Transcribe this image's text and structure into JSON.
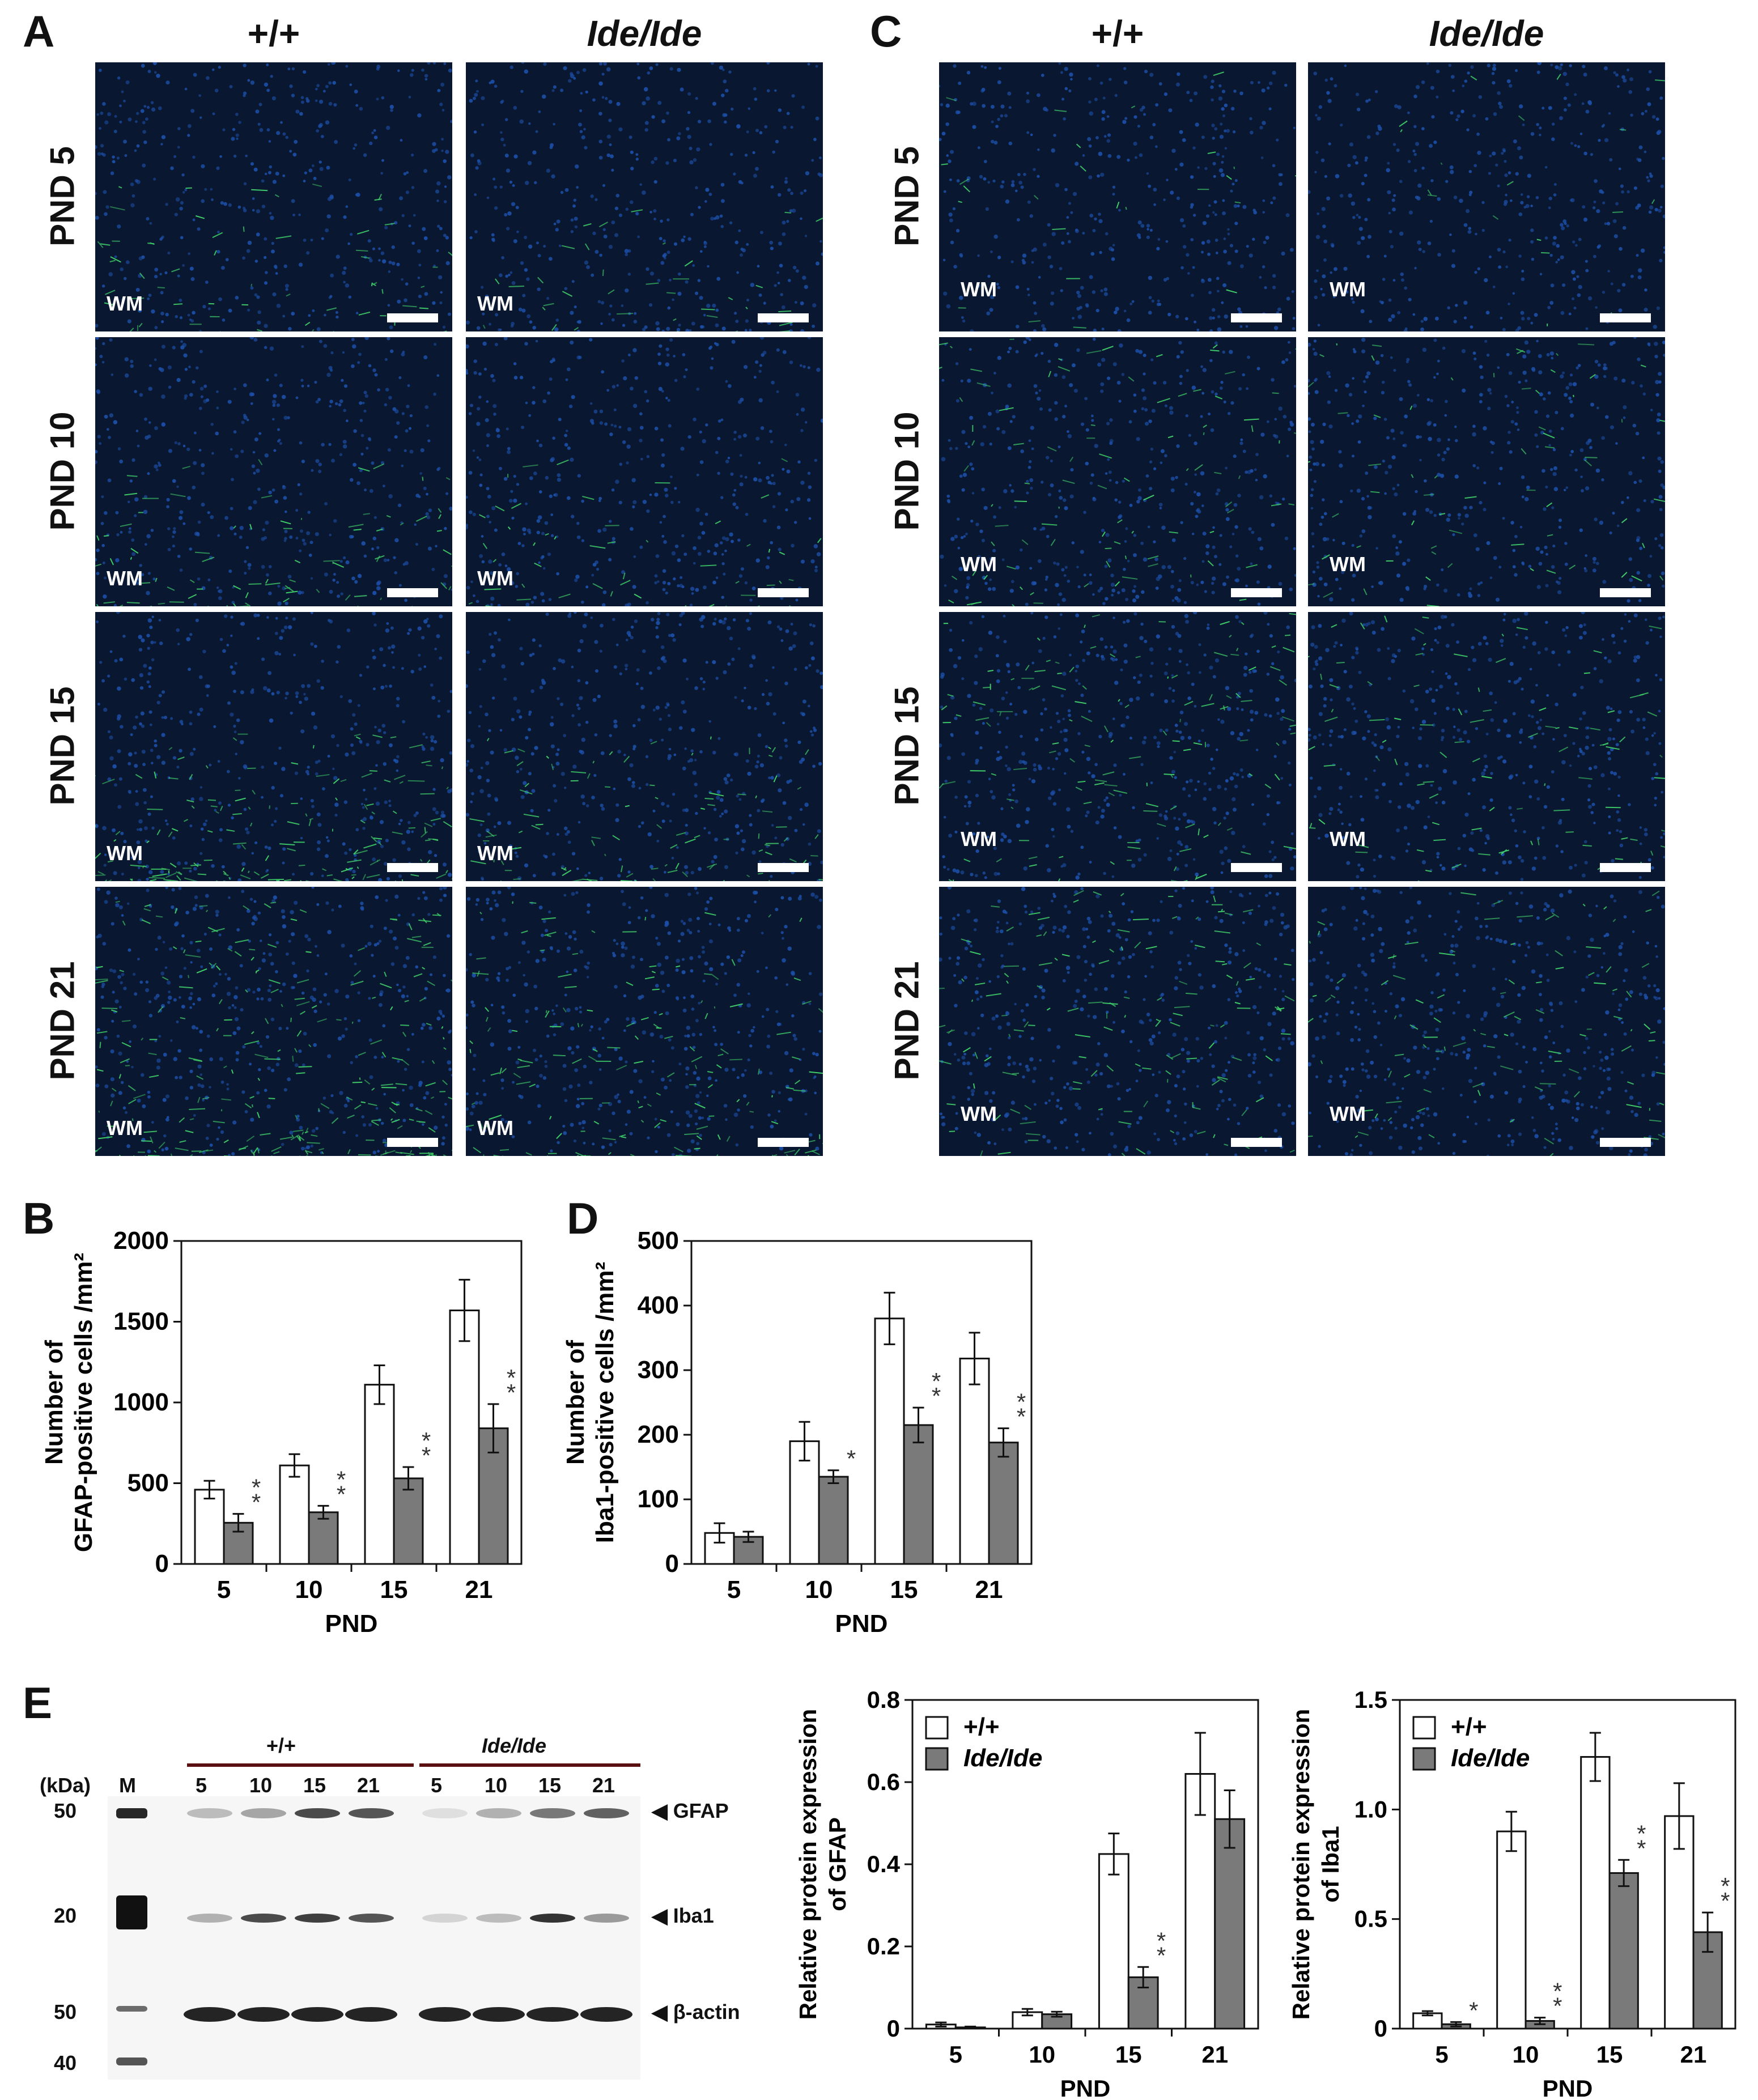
{
  "panels": {
    "A": {
      "letter": "A",
      "col1": "+/+",
      "col2": "Ide/Ide"
    },
    "C": {
      "letter": "C",
      "col1": "+/+",
      "col2": "Ide/Ide"
    },
    "B": {
      "letter": "B"
    },
    "D": {
      "letter": "D"
    },
    "E": {
      "letter": "E"
    }
  },
  "rows": [
    "PND 5",
    "PND 10",
    "PND 15",
    "PND 21"
  ],
  "wm_label": "WM",
  "colors": {
    "nuclei": "#1c4fa8",
    "gfap": "#3fd06a",
    "bg": "#0a1730",
    "filled_bar": "#7a7a7a",
    "open_bar": "#ffffff"
  },
  "blot": {
    "kda_label": "(kDa)",
    "marker_label": "M",
    "group1": "+/+",
    "group2": "Ide/Ide",
    "lanes": [
      "5",
      "10",
      "15",
      "21",
      "5",
      "10",
      "15",
      "21"
    ],
    "markers": [
      "50",
      "20",
      "50",
      "40"
    ],
    "bands": [
      "◀ GFAP",
      "◀ Iba1",
      "◀ β-actin"
    ]
  },
  "chart_data": [
    {
      "id": "B",
      "type": "bar",
      "ylabel": "Number of GFAP-positive cells /mm²",
      "xlabel": "PND",
      "categories": [
        "5",
        "10",
        "15",
        "21"
      ],
      "ylim": [
        0,
        2000
      ],
      "yticks": [
        "0",
        "500",
        "1000",
        "1500",
        "2000"
      ],
      "series": [
        {
          "values": [
            460,
            610,
            1110,
            1570
          ],
          "err": [
            55,
            70,
            120,
            190
          ]
        },
        {
          "values": [
            255,
            320,
            530,
            840
          ],
          "err": [
            55,
            40,
            70,
            150
          ]
        }
      ],
      "sig": [
        "**",
        "**",
        "**",
        "**"
      ]
    },
    {
      "id": "D",
      "type": "bar",
      "ylabel": "Number of Iba1-positive cells /mm²",
      "xlabel": "PND",
      "categories": [
        "5",
        "10",
        "15",
        "21"
      ],
      "ylim": [
        0,
        500
      ],
      "yticks": [
        "0",
        "100",
        "200",
        "300",
        "400",
        "500"
      ],
      "series": [
        {
          "values": [
            48,
            190,
            380,
            318
          ],
          "err": [
            15,
            30,
            40,
            40
          ]
        },
        {
          "values": [
            42,
            135,
            215,
            188
          ],
          "err": [
            8,
            10,
            27,
            22
          ]
        }
      ],
      "sig": [
        "",
        "*",
        "**",
        "**"
      ]
    },
    {
      "id": "E-GFAP",
      "type": "bar",
      "ylabel": "Relative protein expression of GFAP",
      "xlabel": "PND",
      "categories": [
        "5",
        "10",
        "15",
        "21"
      ],
      "ylim": [
        0,
        0.8
      ],
      "yticks": [
        "0",
        "0.2",
        "0.4",
        "0.6",
        "0.8"
      ],
      "legend": [
        "+/+",
        "Ide/Ide"
      ],
      "series": [
        {
          "name": "+/+",
          "values": [
            0.01,
            0.04,
            0.425,
            0.62
          ],
          "err": [
            0.005,
            0.008,
            0.05,
            0.1
          ]
        },
        {
          "name": "Ide/Ide",
          "values": [
            0.003,
            0.035,
            0.125,
            0.51
          ],
          "err": [
            0.002,
            0.006,
            0.025,
            0.07
          ]
        }
      ],
      "sig": [
        "",
        "",
        "**",
        ""
      ]
    },
    {
      "id": "E-Iba1",
      "type": "bar",
      "ylabel": "Relative protein expression of Iba1",
      "xlabel": "PND",
      "categories": [
        "5",
        "10",
        "15",
        "21"
      ],
      "ylim": [
        0,
        1.5
      ],
      "yticks": [
        "0",
        "0.5",
        "1.0",
        "1.5"
      ],
      "legend": [
        "+/+",
        "Ide/Ide"
      ],
      "series": [
        {
          "name": "+/+",
          "values": [
            0.07,
            0.9,
            1.24,
            0.97
          ],
          "err": [
            0.01,
            0.09,
            0.11,
            0.15
          ]
        },
        {
          "name": "Ide/Ide",
          "values": [
            0.02,
            0.035,
            0.71,
            0.44
          ],
          "err": [
            0.01,
            0.015,
            0.06,
            0.09
          ]
        }
      ],
      "sig": [
        "*",
        "**",
        "**",
        "**"
      ]
    }
  ]
}
